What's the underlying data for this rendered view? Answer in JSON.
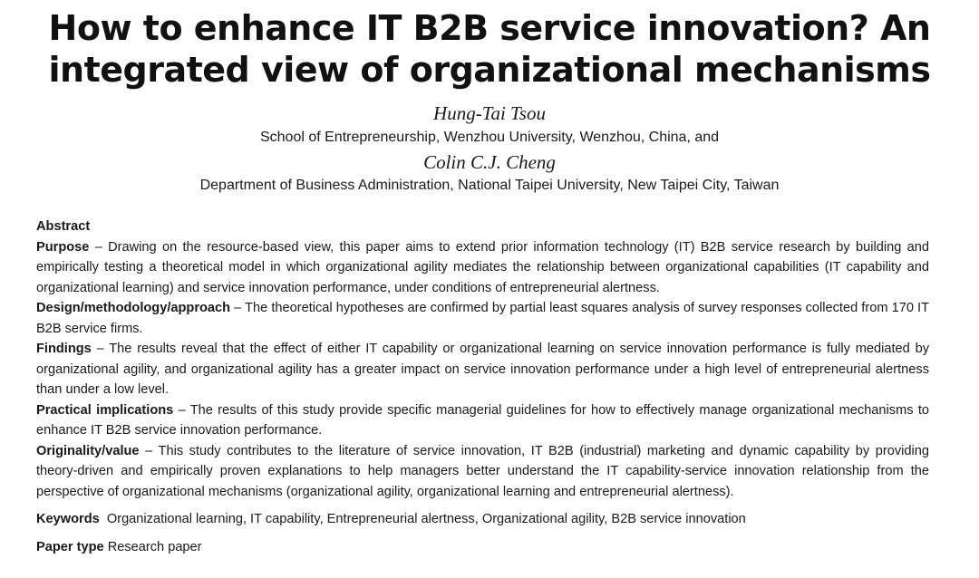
{
  "title": "How to enhance IT B2B service innovation? An integrated view of organizational mechanisms",
  "authors": [
    {
      "name": "Hung-Tai Tsou",
      "affiliation": "School of Entrepreneurship, Wenzhou University, Wenzhou, China, and"
    },
    {
      "name": "Colin C.J. Cheng",
      "affiliation": "Department of Business Administration, National Taipei University, New Taipei City, Taiwan"
    }
  ],
  "abstract": {
    "heading": "Abstract",
    "sections": [
      {
        "label": "Purpose",
        "text": " – Drawing on the resource-based view, this paper aims to extend prior information technology (IT) B2B service research by building and empirically testing a theoretical model in which organizational agility mediates the relationship between organizational capabilities (IT capability and organizational learning) and service innovation performance, under conditions of entrepreneurial alertness."
      },
      {
        "label": "Design/methodology/approach",
        "text": " – The theoretical hypotheses are confirmed by partial least squares analysis of survey responses collected from 170 IT B2B service firms."
      },
      {
        "label": "Findings",
        "text": " – The results reveal that the effect of either IT capability or organizational learning on service innovation performance is fully mediated by organizational agility, and organizational agility has a greater impact on service innovation performance under a high level of entrepreneurial alertness than under a low level."
      },
      {
        "label": "Practical implications",
        "text": " – The results of this study provide specific managerial guidelines for how to effectively manage organizational mechanisms to enhance IT B2B service innovation performance."
      },
      {
        "label": "Originality/value",
        "text": " – This study contributes to the literature of service innovation, IT B2B (industrial) marketing and dynamic capability by providing theory-driven and empirically proven explanations to help managers better understand the IT capability-service innovation relationship from the perspective of organizational mechanisms (organizational agility, organizational learning and entrepreneurial alertness)."
      }
    ]
  },
  "keywords": {
    "label": "Keywords",
    "text": "Organizational learning, IT capability, Entrepreneurial alertness, Organizational agility, B2B service innovation"
  },
  "paper_type": {
    "label": "Paper type",
    "text": "Research paper"
  }
}
